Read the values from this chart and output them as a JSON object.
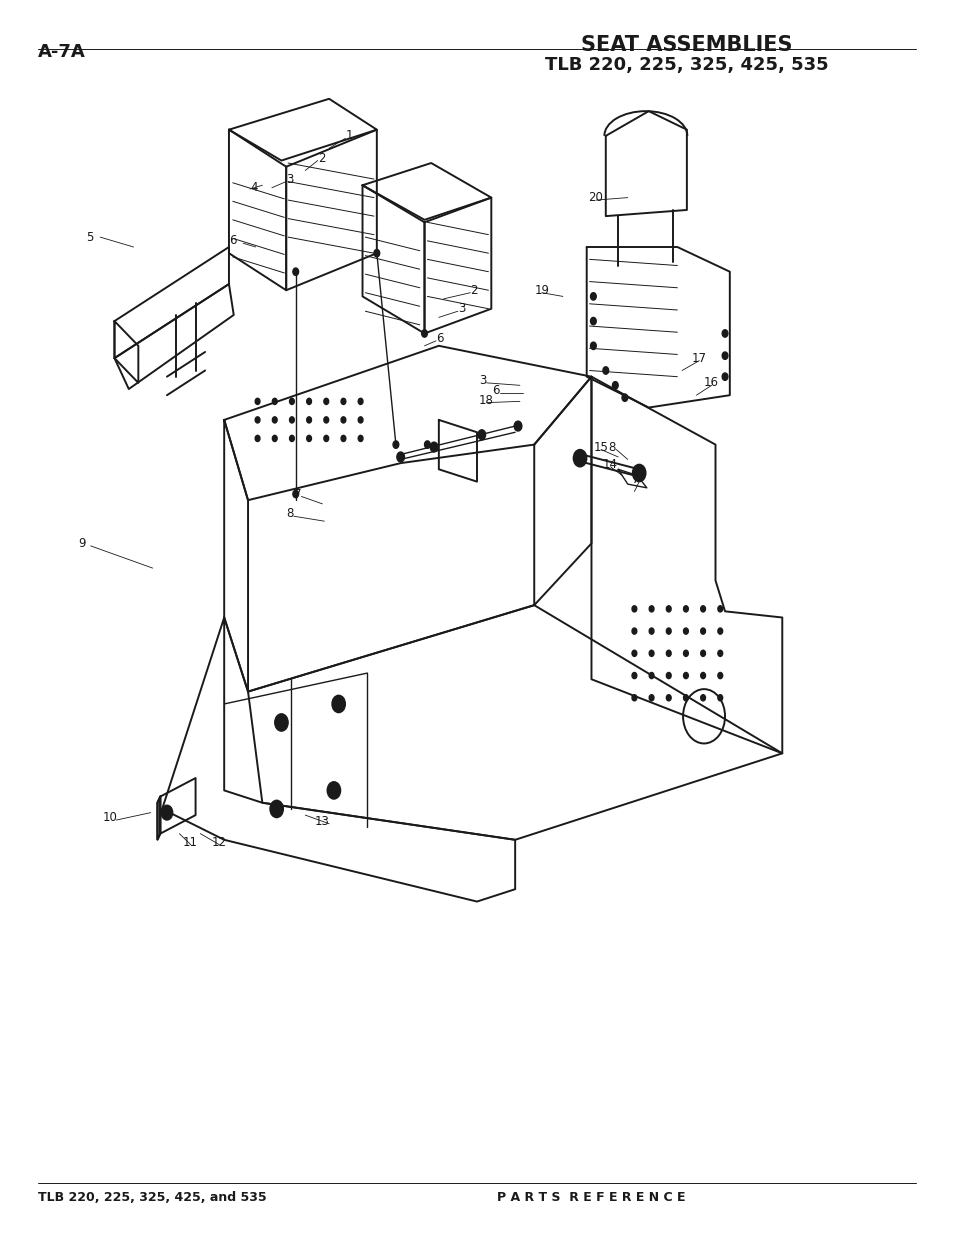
{
  "page_id": "A-7A",
  "title": "SEAT ASSEMBLIES",
  "subtitle": "TLB 220, 225, 325, 425, 535",
  "footer_left": "TLB 220, 225, 325, 425, and 535",
  "footer_right": "P A R T S  R E F E R E N C E",
  "bg_color": "#ffffff",
  "text_color": "#1a1a1a",
  "diagram_color": "#1a1a1a"
}
